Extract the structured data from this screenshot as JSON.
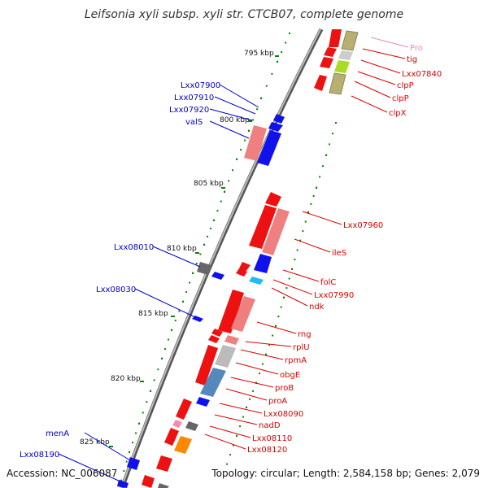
{
  "title": "Leifsonia xyli subsp. xyli str. CTCB07, complete genome",
  "footer": {
    "accession": "Accession: NC_006087",
    "summary": "Topology: circular; Length: 2,584,158 bp; Genes: 2,079"
  },
  "colors": {
    "forward_label": "#dd0000",
    "reverse_label": "#0000cc",
    "faded_label": "#ee88bb",
    "backbone": "#777777",
    "tick": "#008800"
  },
  "ruler": [
    "795 kbp",
    "800 kbp",
    "805 kbp",
    "810 kbp",
    "815 kbp",
    "820 kbp",
    "825 kbp"
  ],
  "left_labels": [
    "Lxx07900",
    "Lxx07910",
    "Lxx07920",
    "valS",
    "Lxx08010",
    "Lxx08030",
    "menA",
    "Lxx08190"
  ],
  "right_labels": [
    "Pro",
    "tig",
    "Lxx07840",
    "clpP",
    "clpP",
    "clpX",
    "Lxx07960",
    "ileS",
    "folC",
    "Lxx07990",
    "ndk",
    "rng",
    "rplU",
    "rpmA",
    "obgE",
    "proB",
    "proA",
    "Lxx08090",
    "nadD",
    "Lxx08110",
    "Lxx08120"
  ]
}
